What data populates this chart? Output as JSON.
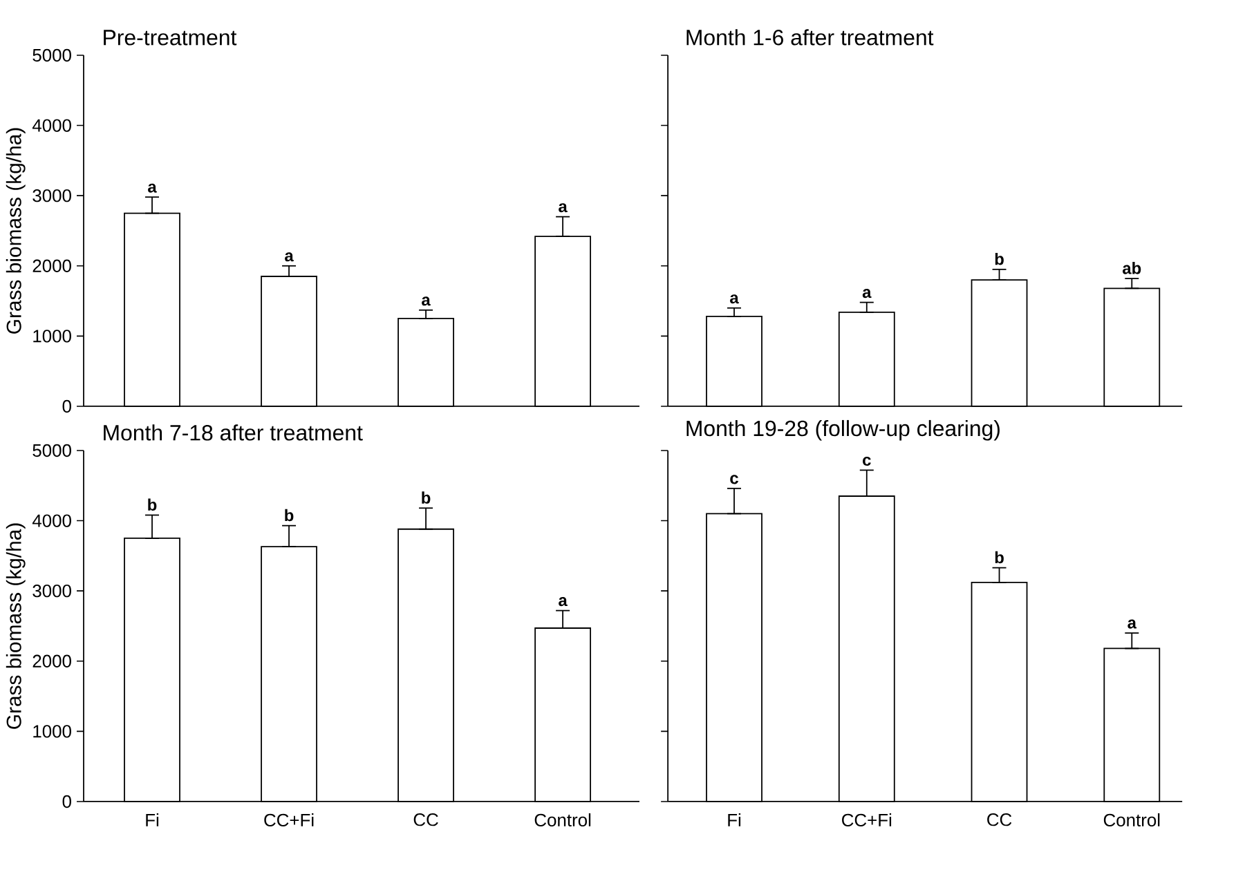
{
  "chart_data": [
    {
      "type": "bar",
      "title": "Pre-treatment",
      "ylabel": "Grass biomass (kg/ha)",
      "categories": [
        "Fi",
        "CC+Fi",
        "CC",
        "Control"
      ],
      "values": [
        2750,
        1850,
        1250,
        2420
      ],
      "errors": [
        [
          2750,
          2980
        ],
        [
          1850,
          2000
        ],
        [
          1250,
          1370
        ],
        [
          2420,
          2700
        ]
      ],
      "color": "#ffffff",
      "ylim": [
        0,
        5000
      ],
      "yticks": [
        0,
        1000,
        2000,
        3000,
        4000,
        5000
      ],
      "tick_labels": "y",
      "annotations": [
        {
          "text": "a",
          "x": "Fi",
          "y": 2980
        },
        {
          "text": "a",
          "x": "CC+Fi",
          "y": 2000
        },
        {
          "text": "a",
          "x": "CC",
          "y": 1370
        },
        {
          "text": "a",
          "x": "Control",
          "y": 2700
        }
      ]
    },
    {
      "type": "bar",
      "title": "Month 1-6 after treatment",
      "categories": [
        "Fi",
        "CC+Fi",
        "CC",
        "Control"
      ],
      "values": [
        1280,
        1340,
        1800,
        1680
      ],
      "errors": [
        [
          1280,
          1400
        ],
        [
          1340,
          1480
        ],
        [
          1800,
          1950
        ],
        [
          1680,
          1820
        ]
      ],
      "color": "#ffffff",
      "ylim": [
        0,
        5000
      ],
      "yticks": [
        0,
        1000,
        2000,
        3000,
        4000,
        5000
      ],
      "tick_labels": false,
      "annotations": [
        {
          "text": "a",
          "x": "Fi",
          "y": 1400
        },
        {
          "text": "a",
          "x": "CC+Fi",
          "y": 1480
        },
        {
          "text": "b",
          "x": "CC",
          "y": 1950
        },
        {
          "text": "ab",
          "x": "Control",
          "y": 1820
        }
      ]
    },
    {
      "type": "bar",
      "title": "Month 7-18 after treatment",
      "ylabel": "Grass biomass (kg/ha)",
      "categories": [
        "Fi",
        "CC+Fi",
        "CC",
        "Control"
      ],
      "values": [
        3750,
        3630,
        3880,
        2470
      ],
      "errors": [
        [
          3750,
          4080
        ],
        [
          3630,
          3930
        ],
        [
          3880,
          4180
        ],
        [
          2470,
          2720
        ]
      ],
      "color": "#ffffff",
      "ylim": [
        0,
        5000
      ],
      "yticks": [
        0,
        1000,
        2000,
        3000,
        4000,
        5000
      ],
      "annotations": [
        {
          "text": "b",
          "x": "Fi",
          "y": 4080
        },
        {
          "text": "b",
          "x": "CC+Fi",
          "y": 3930
        },
        {
          "text": "b",
          "x": "CC",
          "y": 4180
        },
        {
          "text": "a",
          "x": "Control",
          "y": 2720
        }
      ]
    },
    {
      "type": "bar",
      "title": "Month 19-28 (follow-up clearing)",
      "categories": [
        "Fi",
        "CC+Fi",
        "CC",
        "Control"
      ],
      "values": [
        4100,
        4350,
        3120,
        2180
      ],
      "errors": [
        [
          4100,
          4460
        ],
        [
          4350,
          4720
        ],
        [
          3120,
          3330
        ],
        [
          2180,
          2400
        ]
      ],
      "color": "#ffffff",
      "ylim": [
        0,
        5000
      ],
      "yticks": [
        0,
        1000,
        2000,
        3000,
        4000,
        5000
      ],
      "tick_labels": "x",
      "annotations": [
        {
          "text": "c",
          "x": "Fi",
          "y": 4460
        },
        {
          "text": "c",
          "x": "CC+Fi",
          "y": 4720
        },
        {
          "text": "b",
          "x": "CC",
          "y": 3330
        },
        {
          "text": "a",
          "x": "Control",
          "y": 2400
        }
      ]
    }
  ]
}
